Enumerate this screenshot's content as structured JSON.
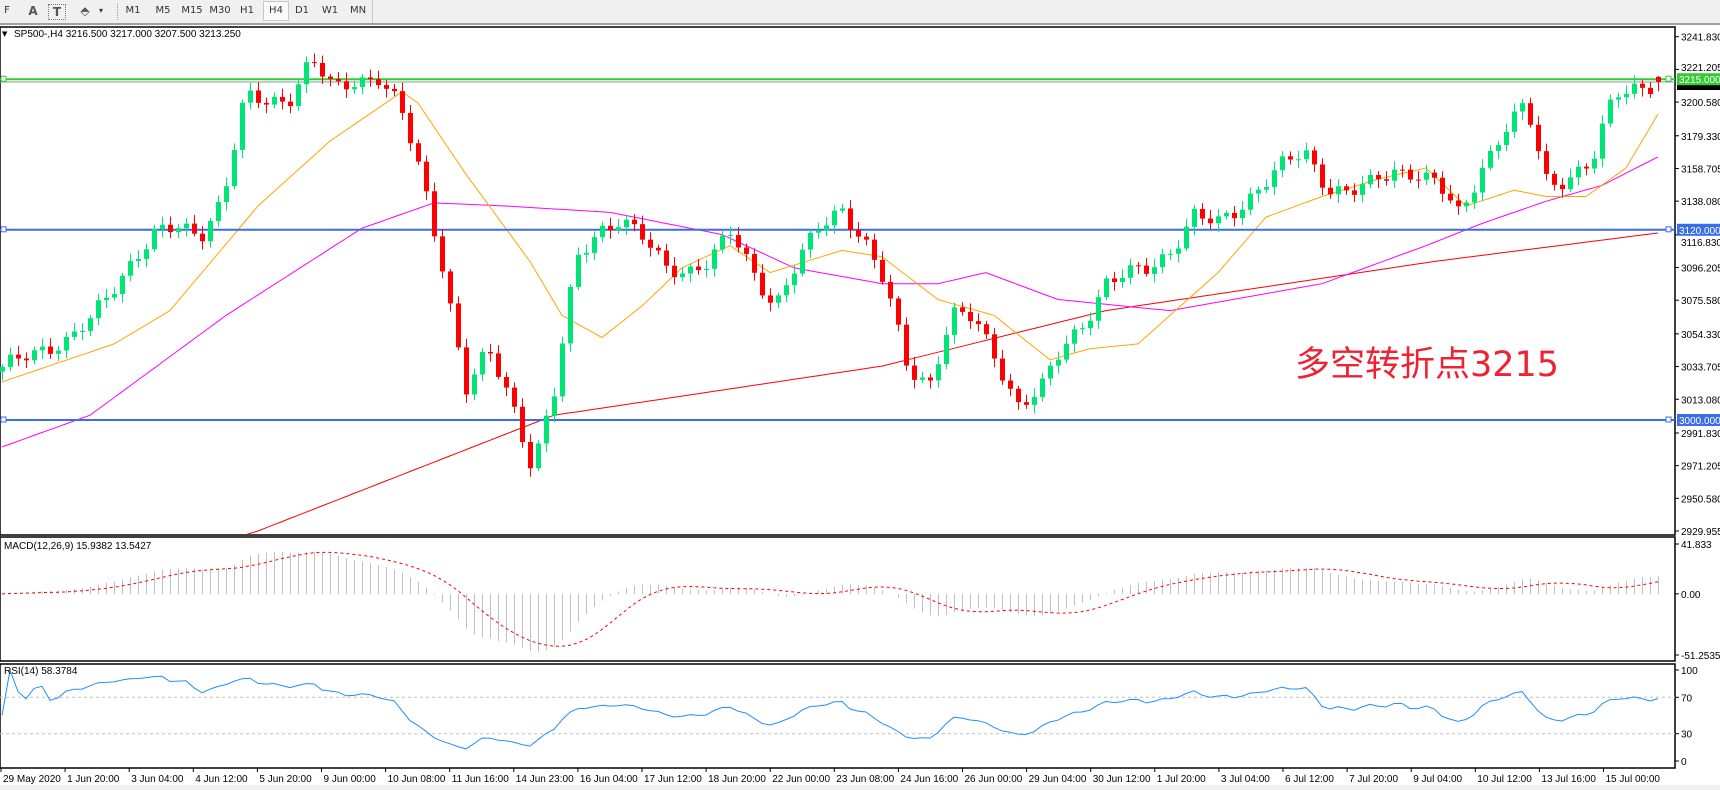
{
  "toolbar": {
    "tools": [
      {
        "name": "period-separator-grid",
        "label": "F"
      },
      {
        "name": "text-tool",
        "label": "A"
      },
      {
        "name": "text-label-tool",
        "label": "T"
      },
      {
        "name": "arrows-tool",
        "label": "⬘"
      }
    ],
    "timeframes": [
      "M1",
      "M5",
      "M15",
      "M30",
      "H1",
      "H4",
      "D1",
      "W1",
      "MN"
    ],
    "active_timeframe": "H4"
  },
  "chart": {
    "header": "SP500-,H4  3216.500 3217.000 3207.500 3213.250",
    "annotation": "多空转折点3215",
    "colors": {
      "bull": "#00e676",
      "bear": "#ff0000",
      "ma_fast": "#ffa500",
      "ma_mid": "#ff00ff",
      "ma_slow": "#ff0000",
      "level_green": "#32cd32",
      "level_blue": "#3a6ee8"
    },
    "price_ticks": [
      "3241.830",
      "3221.205",
      "3200.580",
      "3179.330",
      "3158.705",
      "3138.080",
      "3116.830",
      "3096.205",
      "3075.580",
      "3054.330",
      "3033.705",
      "3013.080",
      "2991.830",
      "2971.205",
      "2950.580",
      "2929.955"
    ],
    "levels": [
      {
        "price": 3215,
        "label": "3215.000",
        "color": "#32cd32"
      },
      {
        "price": 3120,
        "label": "3120.000",
        "color": "#3a6ee8"
      },
      {
        "price": 3000,
        "label": "3000.000",
        "color": "#3a6ee8"
      }
    ],
    "last_price": 3213.25,
    "time_labels": [
      "29 May 2020",
      "1 Jun 20:00",
      "3 Jun 04:00",
      "4 Jun 12:00",
      "5 Jun 20:00",
      "9 Jun 00:00",
      "10 Jun 08:00",
      "11 Jun 16:00",
      "14 Jun 23:00",
      "16 Jun 04:00",
      "17 Jun 12:00",
      "18 Jun 20:00",
      "22 Jun 00:00",
      "23 Jun 08:00",
      "24 Jun 16:00",
      "26 Jun 00:00",
      "29 Jun 04:00",
      "30 Jun 12:00",
      "1 Jul 20:00",
      "3 Jul 04:00",
      "6 Jul 12:00",
      "7 Jul 20:00",
      "9 Jul 04:00",
      "10 Jul 12:00",
      "13 Jul 16:00",
      "15 Jul 00:00"
    ]
  },
  "macd": {
    "label": "MACD(12,26,9) 15.9382 13.5427",
    "ticks": [
      "41.833",
      "0.00",
      "-51.2535"
    ],
    "max": 41.833,
    "min": -51.2535
  },
  "rsi": {
    "label": "RSI(14) 58.3784",
    "ticks": [
      "100",
      "70",
      "30",
      "0"
    ]
  },
  "chart_data": {
    "type": "candlestick",
    "symbol": "SP500-",
    "timeframe": "H4",
    "bar_count": 208,
    "ylim": [
      2929.955,
      3241.83
    ],
    "last_bar": {
      "open": 3216.5,
      "high": 3217.0,
      "low": 3207.5,
      "close": 3213.25
    },
    "approx_closes": [
      3031,
      3040,
      3047,
      3050,
      3062,
      3083,
      3104,
      3118,
      3120,
      3118,
      3141,
      3203,
      3200,
      3204,
      3228,
      3207,
      3214,
      3218,
      3197,
      3152,
      3095,
      3020,
      3042,
      3014,
      2972,
      3017,
      3100,
      3120,
      3128,
      3114,
      3096,
      3095,
      3100,
      3117,
      3094,
      3073,
      3098,
      3121,
      3135,
      3114,
      3084,
      3033,
      3024,
      3066,
      3063,
      3040,
      3010,
      3017,
      3045,
      3063,
      3086,
      3091,
      3097,
      3109,
      3128,
      3123,
      3135,
      3148,
      3160,
      3169,
      3148,
      3143,
      3148,
      3158,
      3157,
      3148,
      3128,
      3160,
      3183,
      3197,
      3148,
      3155,
      3162,
      3204,
      3211,
      3213.25
    ],
    "ma_fast": [
      [
        0,
        3024
      ],
      [
        14,
        3048
      ],
      [
        21,
        3069
      ],
      [
        32,
        3135
      ],
      [
        41,
        3176
      ],
      [
        50,
        3207
      ],
      [
        52,
        3200
      ],
      [
        58,
        3155
      ],
      [
        66,
        3100
      ],
      [
        70,
        3066
      ],
      [
        75,
        3052
      ],
      [
        80,
        3072
      ],
      [
        85,
        3096
      ],
      [
        91,
        3110
      ],
      [
        96,
        3093
      ],
      [
        105,
        3107
      ],
      [
        110,
        3103
      ],
      [
        117,
        3076
      ],
      [
        124,
        3066
      ],
      [
        131,
        3038
      ],
      [
        136,
        3045
      ],
      [
        142,
        3048
      ],
      [
        146,
        3066
      ],
      [
        152,
        3093
      ],
      [
        158,
        3128
      ],
      [
        165,
        3141
      ],
      [
        172,
        3152
      ],
      [
        178,
        3159
      ],
      [
        183,
        3135
      ],
      [
        189,
        3145
      ],
      [
        193,
        3141
      ],
      [
        198,
        3141
      ],
      [
        203,
        3159
      ],
      [
        207,
        3193
      ]
    ],
    "ma_mid": [
      [
        0,
        2983
      ],
      [
        11,
        3003
      ],
      [
        28,
        3066
      ],
      [
        45,
        3121
      ],
      [
        54,
        3137
      ],
      [
        63,
        3135
      ],
      [
        76,
        3131
      ],
      [
        90,
        3117
      ],
      [
        99,
        3096
      ],
      [
        110,
        3086
      ],
      [
        117,
        3086
      ],
      [
        123,
        3093
      ],
      [
        132,
        3076
      ],
      [
        146,
        3069
      ],
      [
        165,
        3086
      ],
      [
        178,
        3110
      ],
      [
        185,
        3124
      ],
      [
        193,
        3138
      ],
      [
        200,
        3148
      ],
      [
        207,
        3166
      ]
    ],
    "ma_slow": [
      [
        0,
        2880
      ],
      [
        32,
        2930
      ],
      [
        69,
        3003
      ],
      [
        110,
        3034
      ],
      [
        138,
        3069
      ],
      [
        179,
        3100
      ],
      [
        207,
        3118
      ]
    ],
    "macd_range": [
      -51.2535,
      41.833
    ],
    "rsi_levels": [
      70,
      30
    ]
  }
}
